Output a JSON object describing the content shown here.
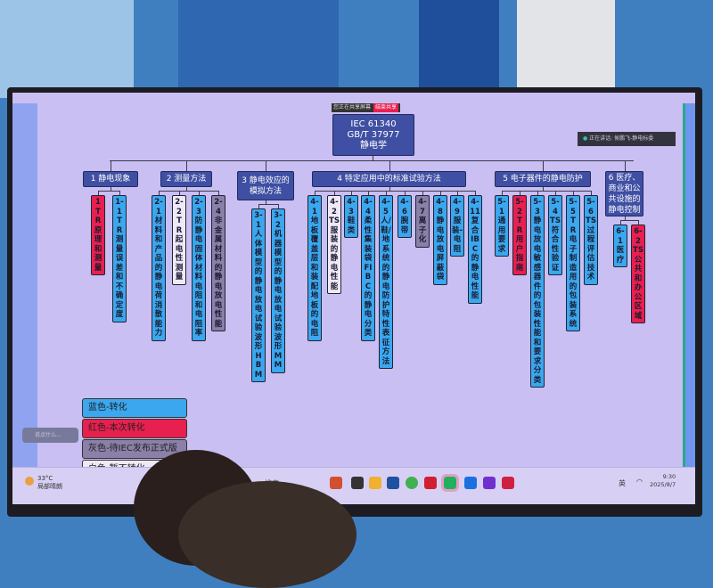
{
  "share_bar": {
    "status": "您正在共享屏幕",
    "stop_button": "结束共享"
  },
  "speaker": {
    "label": "正在讲话: 侯鹏飞-静电标委"
  },
  "root": {
    "lines": [
      "IEC 61340",
      "GB/T 37977",
      "静电学"
    ]
  },
  "categories": [
    {
      "label": "1 静电现象",
      "leaves": [
        {
          "label": "1 TR 原理和测量",
          "color": "red"
        },
        {
          "label": "1-1 TR 测量误差和不确定度",
          "color": "blue"
        }
      ]
    },
    {
      "label": "2 测量方法",
      "leaves": [
        {
          "label": "2-1 材料和产品的静电荷消散能力",
          "color": "blue"
        },
        {
          "label": "2-2 TR 起电性测量",
          "color": "white"
        },
        {
          "label": "2-3 防静电固体材料电阻和电阻率",
          "color": "blue"
        },
        {
          "label": "2-4 非金属材料的静电放电性能",
          "color": "gray"
        }
      ]
    },
    {
      "label": "3 静电效应的模拟方法",
      "leaves": [
        {
          "label": "3-1 人体模型的静电放电试验波形 HBM",
          "color": "blue"
        },
        {
          "label": "3-2 机器模型的静电放电试验波形 MM",
          "color": "blue"
        }
      ]
    },
    {
      "label": "4 特定应用中的标准试验方法",
      "leaves": [
        {
          "label": "4-1 地板覆盖层和装配地板的电阻",
          "color": "blue"
        },
        {
          "label": "4-2 TS 服装的静电性能",
          "color": "white"
        },
        {
          "label": "4-3 鞋类",
          "color": "blue"
        },
        {
          "label": "4-4 柔性集装袋 FIBC 的静电分类",
          "color": "blue"
        },
        {
          "label": "4-5 人/鞋/地系统的静电防护特性表征方法",
          "color": "blue"
        },
        {
          "label": "4-6 腕带",
          "color": "blue"
        },
        {
          "label": "4-7 离子化",
          "color": "gray"
        },
        {
          "label": "4-8 静电放电屏蔽袋",
          "color": "blue"
        },
        {
          "label": "4-9 服装-电阻",
          "color": "blue"
        },
        {
          "label": "4-11 复合 IBC 的静电性能",
          "color": "blue"
        }
      ]
    },
    {
      "label": "5 电子器件的静电防护",
      "leaves": [
        {
          "label": "5-1 通用要求",
          "color": "blue"
        },
        {
          "label": "5-2 TR 用户指南",
          "color": "red"
        },
        {
          "label": "5-3 静电放电敏感器件的包装性能和要求分类",
          "color": "blue"
        },
        {
          "label": "5-4 TS 符合性验证",
          "color": "blue"
        },
        {
          "label": "5-5 TR 电子制造用的包装系统",
          "color": "blue"
        },
        {
          "label": "5-6 TS 过程评估技术",
          "color": "blue"
        }
      ]
    },
    {
      "label": "6 医疗、商业和公共设施的静电控制",
      "leaves": [
        {
          "label": "6-1 医疗",
          "color": "blue"
        },
        {
          "label": "6-2 TS 公共和办公区域",
          "color": "red"
        }
      ]
    }
  ],
  "legend": [
    {
      "label": "蓝色-转化",
      "color": "#3aa7ee"
    },
    {
      "label": "红色-本次转化",
      "color": "#e8204f"
    },
    {
      "label": "灰色-待IEC发布正式版",
      "color": "#8a80a8"
    },
    {
      "label": "白色-暂不转化",
      "color": "#efe9f7"
    }
  ],
  "chat_widget": {
    "placeholder": "说点什么..."
  },
  "taskbar": {
    "weather_temp": "33°C",
    "weather_desc": "局部晴朗",
    "search": "搜索",
    "time": "9:30",
    "date": "2025/8/7",
    "ime": "英"
  },
  "colors": {
    "screen": "#c9bff2",
    "blue": "#3aa7ee",
    "red": "#e8204f",
    "gray": "#8a80a8",
    "white": "#efe9f7",
    "title": "#3f4fa3"
  }
}
